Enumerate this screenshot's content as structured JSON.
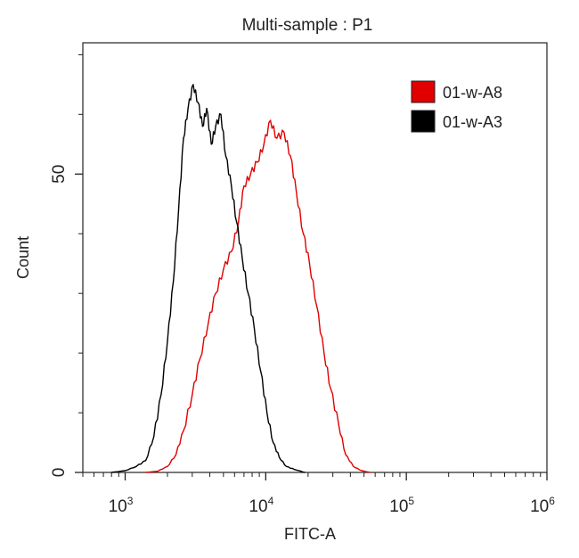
{
  "chart_data": {
    "type": "line",
    "title": "Multi-sample : P1",
    "xlabel": "FITC-A",
    "ylabel": "Count",
    "x_scale": "log",
    "xlim": [
      500,
      1000000
    ],
    "ylim": [
      0,
      72
    ],
    "x_ticks": [
      {
        "value": 1000,
        "base": "10",
        "exp": "3"
      },
      {
        "value": 10000,
        "base": "10",
        "exp": "4"
      },
      {
        "value": 100000,
        "base": "10",
        "exp": "5"
      },
      {
        "value": 1000000,
        "base": "10",
        "exp": "6"
      }
    ],
    "y_ticks": [
      0,
      50
    ],
    "legend_position": "top-right",
    "series": [
      {
        "name": "01-w-A8",
        "color": "#e00000",
        "points": [
          [
            1400,
            0
          ],
          [
            1700,
            0.2
          ],
          [
            2000,
            1
          ],
          [
            2300,
            3
          ],
          [
            2600,
            7
          ],
          [
            3000,
            13
          ],
          [
            3400,
            19
          ],
          [
            3900,
            25
          ],
          [
            4400,
            30
          ],
          [
            5000,
            34
          ],
          [
            5700,
            37
          ],
          [
            6400,
            42
          ],
          [
            7000,
            48
          ],
          [
            7800,
            50
          ],
          [
            8700,
            52
          ],
          [
            9700,
            55
          ],
          [
            10800,
            59
          ],
          [
            12000,
            56
          ],
          [
            13500,
            57
          ],
          [
            15000,
            53
          ],
          [
            16500,
            47
          ],
          [
            18500,
            40
          ],
          [
            20500,
            35
          ],
          [
            23000,
            28
          ],
          [
            26000,
            20
          ],
          [
            29000,
            14
          ],
          [
            33000,
            8
          ],
          [
            37000,
            3
          ],
          [
            42000,
            1
          ],
          [
            48000,
            0.3
          ],
          [
            55000,
            0
          ]
        ]
      },
      {
        "name": "01-w-A3",
        "color": "#000000",
        "points": [
          [
            800,
            0
          ],
          [
            1000,
            0.3
          ],
          [
            1200,
            1
          ],
          [
            1400,
            2
          ],
          [
            1600,
            6
          ],
          [
            1800,
            13
          ],
          [
            2000,
            22
          ],
          [
            2200,
            32
          ],
          [
            2400,
            44
          ],
          [
            2600,
            56
          ],
          [
            2800,
            61
          ],
          [
            3050,
            65
          ],
          [
            3300,
            62
          ],
          [
            3550,
            58
          ],
          [
            3800,
            61
          ],
          [
            4100,
            55
          ],
          [
            4400,
            58
          ],
          [
            4800,
            60
          ],
          [
            5200,
            53
          ],
          [
            5700,
            48
          ],
          [
            6200,
            42
          ],
          [
            6800,
            36
          ],
          [
            7500,
            30
          ],
          [
            8300,
            24
          ],
          [
            9200,
            17
          ],
          [
            10200,
            10
          ],
          [
            11300,
            5
          ],
          [
            12500,
            2.5
          ],
          [
            14000,
            1
          ],
          [
            16000,
            0.5
          ],
          [
            19000,
            0
          ]
        ]
      }
    ]
  }
}
